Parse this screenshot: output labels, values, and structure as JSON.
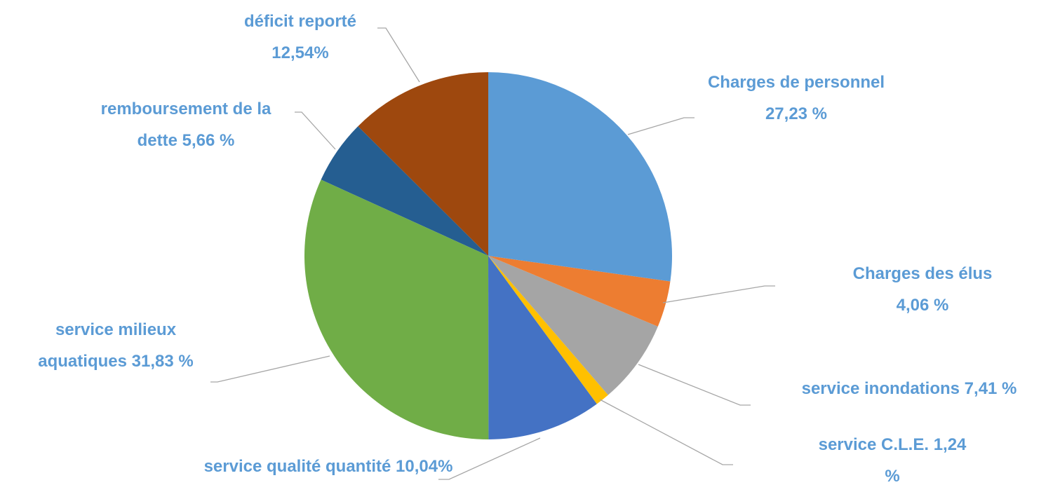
{
  "chart_data": {
    "type": "pie",
    "categories": [
      "Charges de personnel",
      "Charges des élus",
      "service inondations",
      "service C.L.E.",
      "service qualité quantité",
      "service milieux aquatiques",
      "remboursement de la dette",
      "déficit reporté"
    ],
    "values": [
      27.23,
      4.06,
      7.41,
      1.24,
      10.04,
      31.83,
      5.66,
      12.54
    ],
    "value_labels": [
      "27,23 %",
      "4,06 %",
      "7,41 %",
      "1,24 %",
      "10,04%",
      "31,83 %",
      "5,66 %",
      "12,54%"
    ],
    "colors": [
      "#5b9bd5",
      "#ed7d31",
      "#a5a5a5",
      "#ffc000",
      "#4472c4",
      "#70ad47",
      "#255e91",
      "#9e480e"
    ]
  }
}
